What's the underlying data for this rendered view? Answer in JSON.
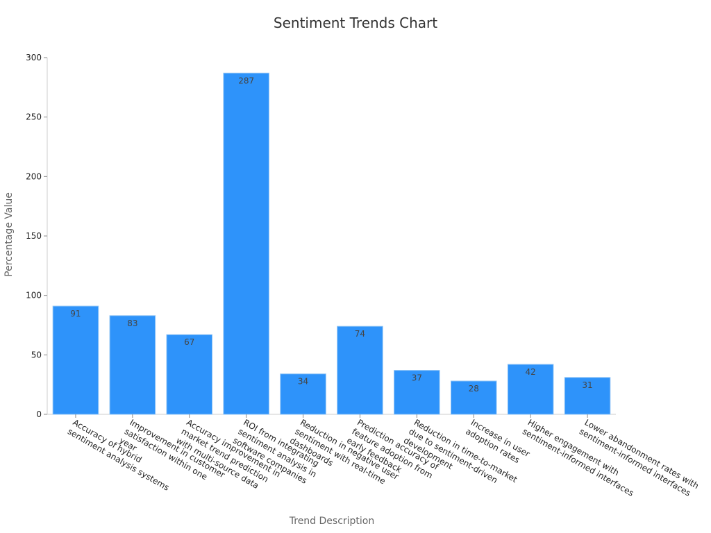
{
  "chart_data": {
    "type": "bar",
    "title": "Sentiment Trends Chart",
    "xlabel": "Trend Description",
    "ylabel": "Percentage Value",
    "ylim": [
      0,
      300
    ],
    "yticks": [
      0,
      50,
      100,
      150,
      200,
      250,
      300
    ],
    "grid": false,
    "bar_color": "#2e93fa",
    "bar_stroke": "#8ec3f5",
    "categories": [
      [
        "Accuracy of hybrid",
        "sentiment analysis systems"
      ],
      [
        "Improvement in customer",
        "satisfaction within one",
        "year"
      ],
      [
        "Accuracy improvement in",
        "market trend prediction",
        "with multi-source data"
      ],
      [
        "ROI from integrating",
        "sentiment analysis in",
        "software companies"
      ],
      [
        "Reduction in negative user",
        "sentiment with real-time",
        "dashboards"
      ],
      [
        "Prediction accuracy of",
        "feature adoption from",
        "early feedback"
      ],
      [
        "Reduction in time-to-market",
        "due to sentiment-driven",
        "development"
      ],
      [
        "Increase in user",
        "adoption rates"
      ],
      [
        "Higher engagement with",
        "sentiment-informed interfaces"
      ],
      [
        "Lower abandonment rates with",
        "sentiment-informed interfaces"
      ]
    ],
    "values": [
      91,
      83,
      67,
      287,
      34,
      74,
      37,
      28,
      42,
      31
    ]
  }
}
